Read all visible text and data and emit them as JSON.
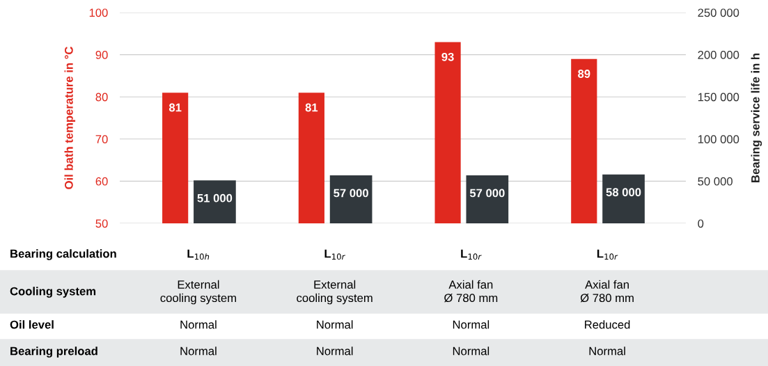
{
  "chart_data": {
    "type": "bar",
    "ylabel": "Oil bath temperature in °C",
    "y2label": "Bearing service life in h",
    "categories": [
      "L$_{10h}$",
      "L$_{10r}$",
      "L$_{10r}$",
      "L$_{10r}$"
    ],
    "series": [
      {
        "color": "#e0291f",
        "values": [
          81,
          81,
          93,
          89
        ],
        "value_labels": [
          "81",
          "81",
          "93",
          "89"
        ]
      },
      {
        "color": "#31383d",
        "values": [
          51000,
          57000,
          57000,
          58000
        ],
        "axis": "y2",
        "value_labels": [
          "51 000",
          "57 000",
          "57 000",
          "58 000"
        ]
      }
    ],
    "ylim": [
      50,
      100
    ],
    "yticks": [
      50,
      60,
      70,
      80,
      90,
      100
    ],
    "y2lim": [
      0,
      250000
    ],
    "y2ticks": [
      0,
      {
        "value": 50000,
        "label": "50 000"
      },
      {
        "value": 100000,
        "label": "100 000"
      },
      {
        "value": 150000,
        "label": "150 000"
      },
      {
        "value": 200000,
        "label": "200 000"
      },
      {
        "value": 250000,
        "label": "250 000"
      }
    ],
    "grid": "y",
    "annotations": [
      "Bearing calculation",
      "Cooling system",
      "External\ncooling system",
      "External\ncooling system",
      "Axial fan\nØ 780 mm",
      "Axial fan\nØ 780 mm",
      "Oil level",
      "Normal",
      "Normal",
      "Normal",
      "Reduced",
      "Bearing preload",
      "Normal",
      "Normal",
      "Normal",
      "Normal"
    ]
  }
}
